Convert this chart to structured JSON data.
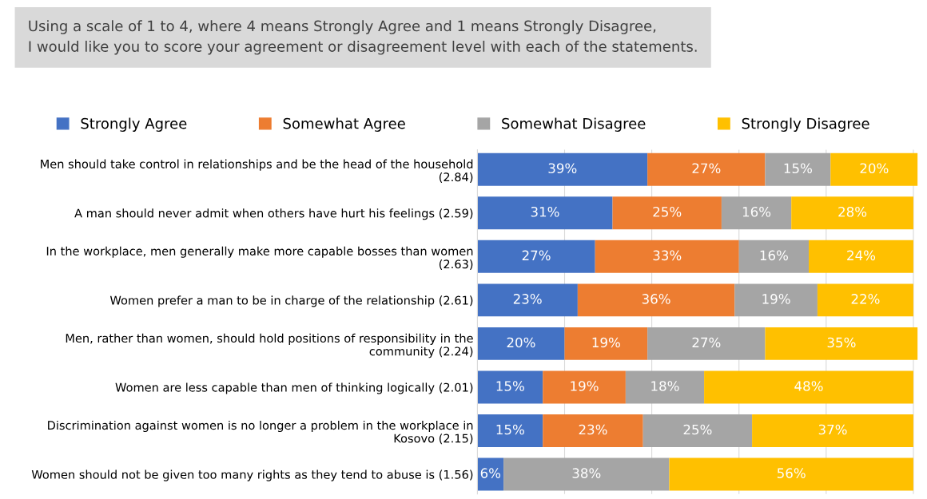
{
  "chart_data": {
    "type": "bar",
    "orientation": "horizontal",
    "stacked": true,
    "title": "Using a scale of 1 to 4, where 4 means Strongly Agree and 1 means Strongly Disagree,\nI would like you to score your agreement or disagreement level with each of the statements.",
    "categories": [
      "Men should take control in relationships and be the head of the household\n(2.84)",
      "A man should never admit when others have hurt his feelings (2.59)",
      "In the workplace, men generally make more capable bosses than women\n(2.63)",
      "Women prefer a man to be in charge of the relationship (2.61)",
      "Men, rather than women, should hold positions of responsibility in the\ncommunity (2.24)",
      "Women are less capable than men of thinking logically (2.01)",
      "Discrimination against women is no longer a problem in the workplace in\nKosovo (2.15)",
      "Women should not be given too many rights as they tend to abuse is (1.56)"
    ],
    "series": [
      {
        "name": "Strongly Agree",
        "color": "#4472c4",
        "values": [
          39,
          31,
          27,
          23,
          20,
          15,
          15,
          6
        ],
        "value_labels": [
          "39%",
          "31%",
          "27%",
          "23%",
          "20%",
          "15%",
          "15%",
          "6%"
        ]
      },
      {
        "name": "Somewhat Agree",
        "color": "#ed7d31",
        "values": [
          27,
          25,
          33,
          36,
          19,
          19,
          23,
          0
        ],
        "value_labels": [
          "27%",
          "25%",
          "33%",
          "36%",
          "19%",
          "19%",
          "23%",
          null
        ]
      },
      {
        "name": "Somewhat Disagree",
        "color": "#a5a5a5",
        "values": [
          15,
          16,
          16,
          19,
          27,
          18,
          25,
          38
        ],
        "value_labels": [
          "15%",
          "16%",
          "16%",
          "19%",
          "27%",
          "18%",
          "25%",
          "38%"
        ]
      },
      {
        "name": "Strongly Disagree",
        "color": "#ffc000",
        "values": [
          20,
          28,
          24,
          22,
          35,
          48,
          37,
          56
        ],
        "value_labels": [
          "20%",
          "28%",
          "24%",
          "22%",
          "35%",
          "48%",
          "37%",
          "56%"
        ]
      }
    ],
    "legend": "top",
    "grid": "x",
    "tick_labels": "y"
  }
}
